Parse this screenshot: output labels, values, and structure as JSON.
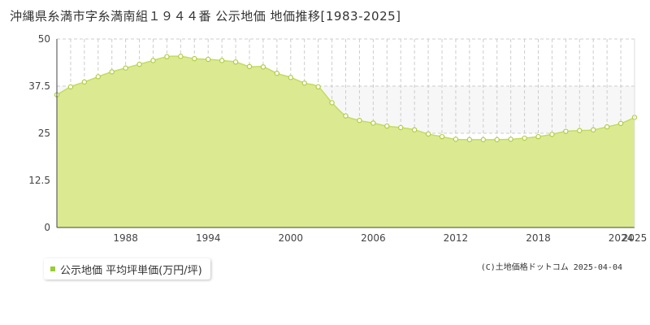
{
  "title": "沖縄県糸満市字糸満南組１９４４番 公示地価 地価推移[1983-2025]",
  "legend": {
    "label": "公示地価 平均坪単価(万円/坪)"
  },
  "credit": "(C)土地価格ドットコム 2025-04-04",
  "colors": {
    "fill": "#dbea91",
    "line": "#c4db60",
    "point_fill": "#ffffff",
    "point_stroke": "#b0cc40",
    "grid": "#cccccc",
    "axis": "#444444",
    "future_band": "#f7f7f7",
    "legend_marker": "#99cc33"
  },
  "chart_data": {
    "type": "area",
    "title": "",
    "xlabel": "",
    "ylabel": "",
    "xlim": [
      1983,
      2025
    ],
    "ylim": [
      0,
      50
    ],
    "y_ticks": [
      "0",
      "12.5",
      "25",
      "37.5",
      "50"
    ],
    "x_ticks": [
      "1988",
      "1994",
      "2000",
      "2006",
      "2012",
      "2018",
      "2024",
      "2025"
    ],
    "grid": true,
    "legend_position": "bottom-left",
    "x": [
      1983,
      1984,
      1985,
      1986,
      1987,
      1988,
      1989,
      1990,
      1991,
      1992,
      1993,
      1994,
      1995,
      1996,
      1997,
      1998,
      1999,
      2000,
      2001,
      2002,
      2003,
      2004,
      2005,
      2006,
      2007,
      2008,
      2009,
      2010,
      2011,
      2012,
      2013,
      2014,
      2015,
      2016,
      2017,
      2018,
      2019,
      2020,
      2021,
      2022,
      2023,
      2024,
      2025
    ],
    "series": [
      {
        "name": "公示地価 平均坪単価(万円/坪)",
        "values": [
          35.2,
          37.3,
          38.6,
          40.0,
          41.3,
          42.3,
          43.3,
          44.3,
          45.3,
          45.4,
          44.8,
          44.6,
          44.3,
          43.9,
          42.7,
          42.6,
          40.9,
          39.8,
          38.3,
          37.3,
          33.1,
          29.6,
          28.4,
          27.7,
          26.9,
          26.5,
          25.9,
          24.8,
          24.1,
          23.4,
          23.3,
          23.3,
          23.3,
          23.4,
          23.7,
          24.1,
          24.7,
          25.5,
          25.7,
          25.9,
          26.7,
          27.6,
          29.2
        ]
      }
    ]
  }
}
